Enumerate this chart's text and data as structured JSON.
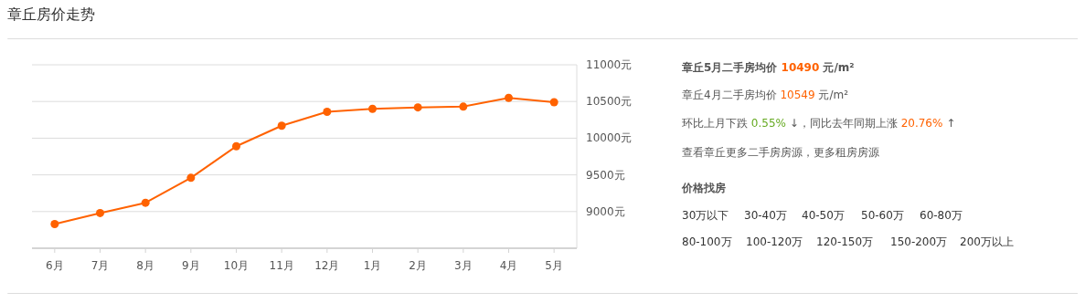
{
  "chart_data": {
    "type": "line",
    "title": "章丘房价走势",
    "categories": [
      "6月",
      "7月",
      "8月",
      "9月",
      "10月",
      "11月",
      "12月",
      "1月",
      "2月",
      "3月",
      "4月",
      "5月"
    ],
    "series": [
      {
        "color": "#ff6200",
        "values": [
          8830,
          8980,
          9120,
          9460,
          9890,
          10170,
          10360,
          10400,
          10420,
          10430,
          10549,
          10490
        ]
      }
    ],
    "ylim": [
      8500,
      11000
    ],
    "yticks": [
      {
        "value": 9000,
        "label": "9000元"
      },
      {
        "value": 9500,
        "label": "9500元"
      },
      {
        "value": 10000,
        "label": "10000元"
      },
      {
        "value": 10500,
        "label": "10500元"
      },
      {
        "value": 11000,
        "label": "11000元"
      }
    ],
    "grid": "y",
    "marker": "circle",
    "line_style": "solid",
    "annotations": [
      "章丘5月二手房均价 10490 元/m²",
      "章丘4月二手房均价 10549 元/m²",
      "环比上月下跌 0.55% ↓，同比去年同期上涨 20.76% ↑",
      "查看章丘更多二手房房源，更多租房房源",
      "价格找房",
      "30万以下",
      "30-40万",
      "40-50万",
      "50-60万",
      "60-80万",
      "80-100万",
      "100-120万",
      "120-150万",
      "150-200万",
      "200万以上"
    ]
  }
}
